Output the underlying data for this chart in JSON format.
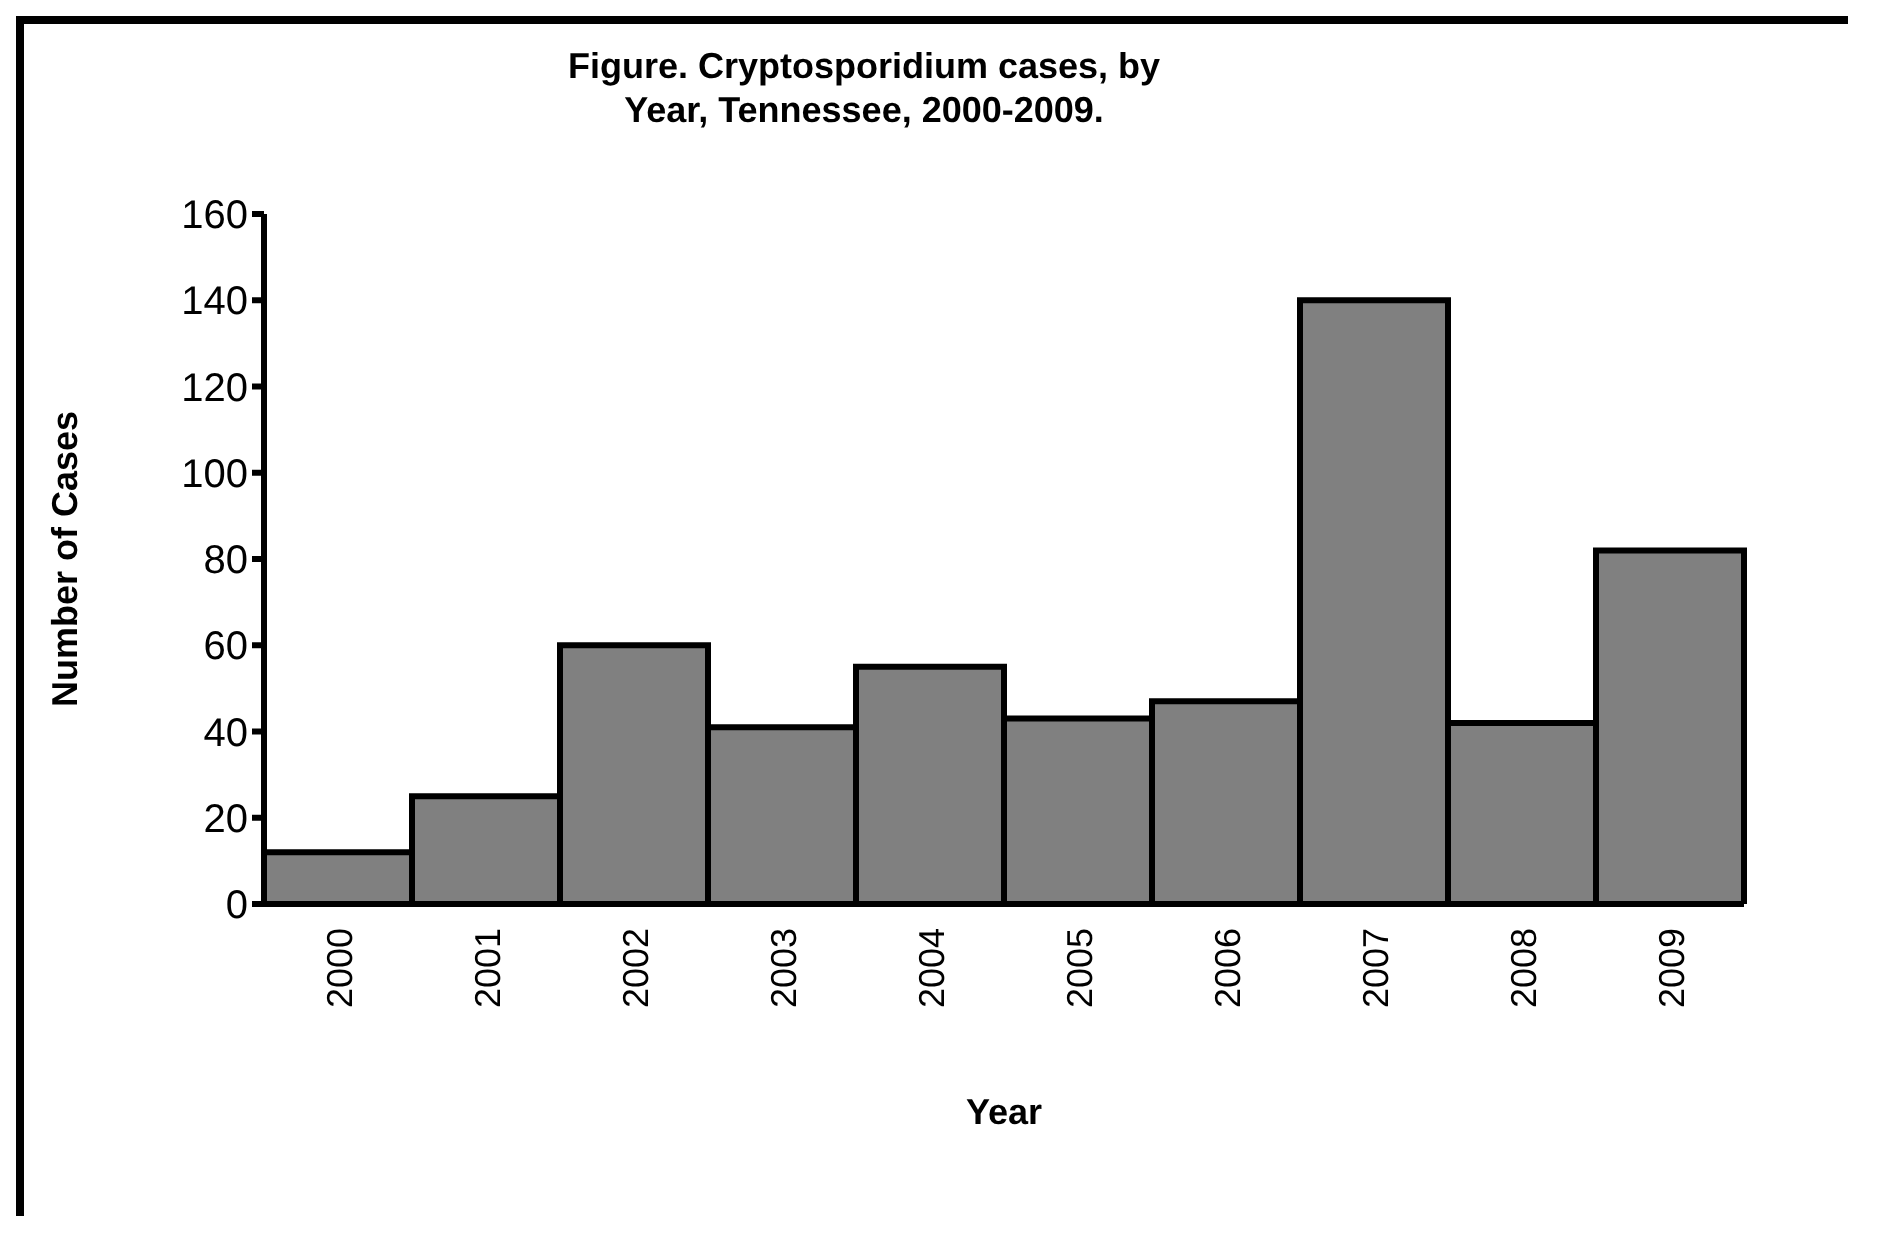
{
  "chart_data": {
    "type": "bar",
    "title": "Figure. Cryptosporidium cases, by Year, Tennessee, 2000-2009.",
    "xlabel": "Year",
    "ylabel": "Number of Cases",
    "categories": [
      "2000",
      "2001",
      "2002",
      "2003",
      "2004",
      "2005",
      "2006",
      "2007",
      "2008",
      "2009"
    ],
    "values": [
      12,
      25,
      60,
      41,
      55,
      43,
      47,
      140,
      42,
      82
    ],
    "color": "#808080",
    "ylim": [
      0,
      160
    ],
    "yticks": [
      0,
      20,
      40,
      60,
      80,
      100,
      120,
      140,
      160
    ],
    "grid": false,
    "legend": false
  }
}
